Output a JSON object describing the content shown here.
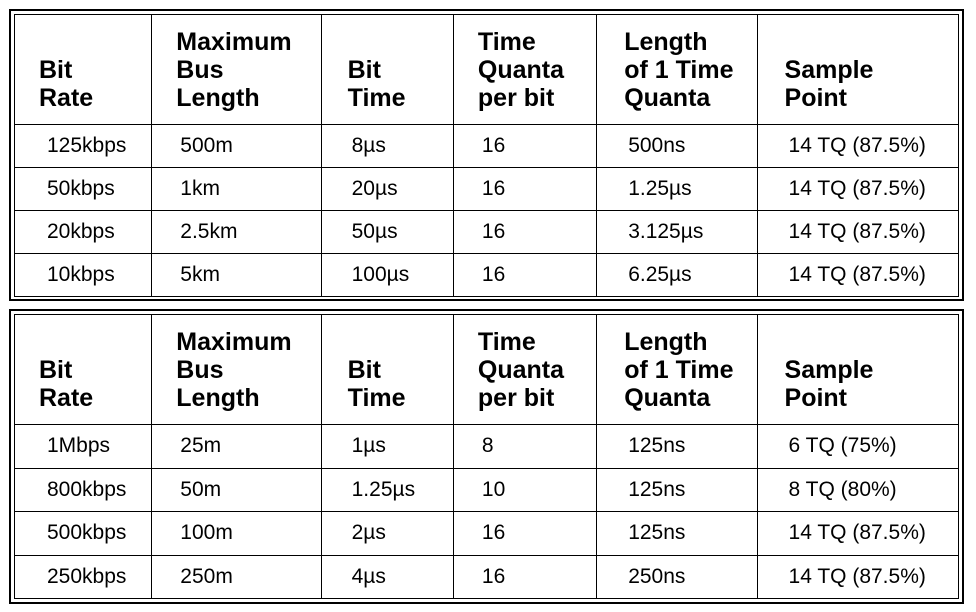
{
  "headers": [
    [
      "Bit",
      "Rate"
    ],
    [
      "Maximum",
      "Bus",
      "Length"
    ],
    [
      "Bit",
      "Time"
    ],
    [
      "Time",
      "Quanta",
      "per bit"
    ],
    [
      "Length",
      "of 1 Time",
      "Quanta"
    ],
    [
      "Sample",
      "Point"
    ]
  ],
  "tables": [
    {
      "rows": [
        [
          "125kbps",
          "500m",
          "8µs",
          "16",
          "500ns",
          "14 TQ (87.5%)"
        ],
        [
          "50kbps",
          "1km",
          "20µs",
          "16",
          "1.25µs",
          "14 TQ (87.5%)"
        ],
        [
          "20kbps",
          "2.5km",
          "50µs",
          "16",
          "3.125µs",
          "14 TQ (87.5%)"
        ],
        [
          "10kbps",
          "5km",
          "100µs",
          "16",
          "6.25µs",
          "14 TQ (87.5%)"
        ]
      ]
    },
    {
      "rows": [
        [
          "1Mbps",
          "25m",
          "1µs",
          "8",
          "125ns",
          "6 TQ (75%)"
        ],
        [
          "800kbps",
          "50m",
          "1.25µs",
          "10",
          "125ns",
          "8 TQ (80%)"
        ],
        [
          "500kbps",
          "100m",
          "2µs",
          "16",
          "125ns",
          "14 TQ (87.5%)"
        ],
        [
          "250kbps",
          "250m",
          "4µs",
          "16",
          "250ns",
          "14 TQ (87.5%)"
        ]
      ]
    }
  ]
}
